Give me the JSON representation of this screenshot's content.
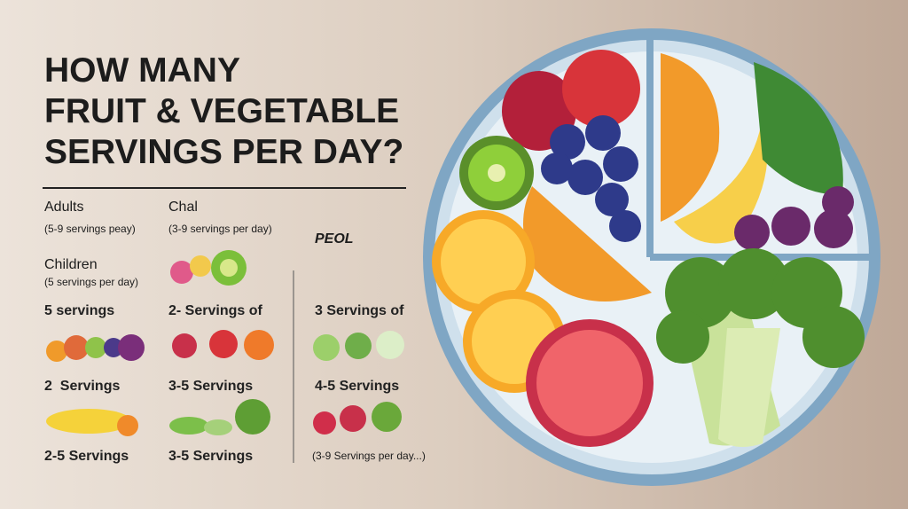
{
  "title": [
    "HOW MANY",
    "FRUIT & VEGETABLE",
    "SERVINGS PER DAY?"
  ],
  "groups": [
    {
      "name": "Adults",
      "note": "(5-9 servings peay)"
    },
    {
      "name": "Chal",
      "note": "(3-9 servings per day)"
    },
    {
      "name": "PEOL"
    },
    {
      "name": "Children",
      "note": "(5 servings per day)"
    }
  ],
  "servings": [
    [
      "5 servings",
      "2- Servings of",
      "3 Servings of"
    ],
    [
      "2  Servings",
      "3-5 Servings",
      "4-5 Servings"
    ],
    [
      "2-5 Servings",
      "3-5 Servings",
      "(3-9 Servings per day...)"
    ]
  ]
}
